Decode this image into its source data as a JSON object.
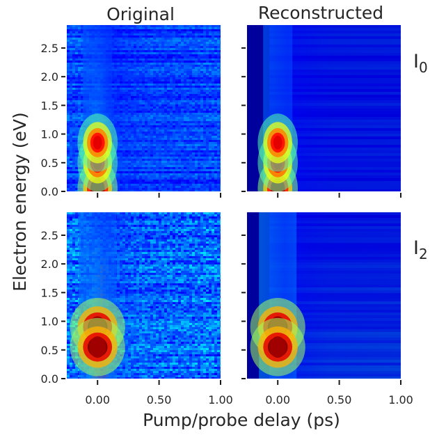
{
  "figure": {
    "column_titles": [
      "Original",
      "Reconstructed"
    ],
    "row_labels": [
      {
        "base": "I",
        "sub": "0"
      },
      {
        "base": "I",
        "sub": "2"
      }
    ],
    "xlabel": "Pump/probe delay (ps)",
    "ylabel": "Electron energy (eV)"
  },
  "chart_data": [
    {
      "type": "heatmap",
      "title": "Original",
      "row_label": "I0",
      "colormap": "jet",
      "xlim": [
        -0.25,
        1.0
      ],
      "ylim": [
        0.0,
        2.9
      ],
      "x_ticks": [
        0.0,
        0.5,
        1.0
      ],
      "x_tick_labels": [
        "",
        "",
        ""
      ],
      "y_ticks": [
        0.0,
        0.5,
        1.0,
        1.5,
        2.0,
        2.5
      ],
      "y_tick_labels": [
        "0.0",
        "0.5",
        "1.0",
        "1.5",
        "2.0",
        "2.5"
      ],
      "features": [
        {
          "delay_ps": 0.0,
          "energy_eV": 0.05,
          "relative_intensity": 0.85
        },
        {
          "delay_ps": 0.0,
          "energy_eV": 0.5,
          "relative_intensity": 0.55
        },
        {
          "delay_ps": 0.0,
          "energy_eV": 0.85,
          "relative_intensity": 0.5
        }
      ]
    },
    {
      "type": "heatmap",
      "title": "Reconstructed",
      "row_label": "I0",
      "colormap": "jet",
      "xlim": [
        -0.25,
        1.0
      ],
      "ylim": [
        0.0,
        2.9
      ],
      "x_ticks": [
        0.0,
        0.5,
        1.0
      ],
      "x_tick_labels": [
        "",
        "",
        ""
      ],
      "y_ticks": [
        0.0,
        0.5,
        1.0,
        1.5,
        2.0,
        2.5
      ],
      "y_tick_labels": [
        "",
        "",
        "",
        "",
        "",
        ""
      ],
      "features": [
        {
          "delay_ps": 0.0,
          "energy_eV": 0.05,
          "relative_intensity": 0.85
        },
        {
          "delay_ps": 0.0,
          "energy_eV": 0.5,
          "relative_intensity": 0.55
        },
        {
          "delay_ps": 0.0,
          "energy_eV": 0.85,
          "relative_intensity": 0.5
        }
      ]
    },
    {
      "type": "heatmap",
      "title": "",
      "row_label": "I2",
      "colormap": "jet",
      "xlim": [
        -0.25,
        1.0
      ],
      "ylim": [
        0.0,
        2.9
      ],
      "x_ticks": [
        0.0,
        0.5,
        1.0
      ],
      "x_tick_labels": [
        "0.00",
        "0.50",
        "1.00"
      ],
      "y_ticks": [
        0.0,
        0.5,
        1.0,
        1.5,
        2.0,
        2.5
      ],
      "y_tick_labels": [
        "0.0",
        "0.5",
        "1.0",
        "1.5",
        "2.0",
        "2.5"
      ],
      "features": [
        {
          "delay_ps": 0.0,
          "energy_eV": 0.9,
          "relative_intensity": 1.0
        },
        {
          "delay_ps": 0.0,
          "energy_eV": 0.55,
          "relative_intensity": 1.0
        }
      ]
    },
    {
      "type": "heatmap",
      "title": "",
      "row_label": "I2",
      "colormap": "jet",
      "xlim": [
        -0.25,
        1.0
      ],
      "ylim": [
        0.0,
        2.9
      ],
      "x_ticks": [
        0.0,
        0.5,
        1.0
      ],
      "x_tick_labels": [
        "0.00",
        "0.50",
        "1.00"
      ],
      "y_ticks": [
        0.0,
        0.5,
        1.0,
        1.5,
        2.0,
        2.5
      ],
      "y_tick_labels": [
        "",
        "",
        "",
        "",
        "",
        ""
      ],
      "features": [
        {
          "delay_ps": 0.0,
          "energy_eV": 0.9,
          "relative_intensity": 1.0
        },
        {
          "delay_ps": 0.0,
          "energy_eV": 0.55,
          "relative_intensity": 1.0
        }
      ]
    }
  ]
}
